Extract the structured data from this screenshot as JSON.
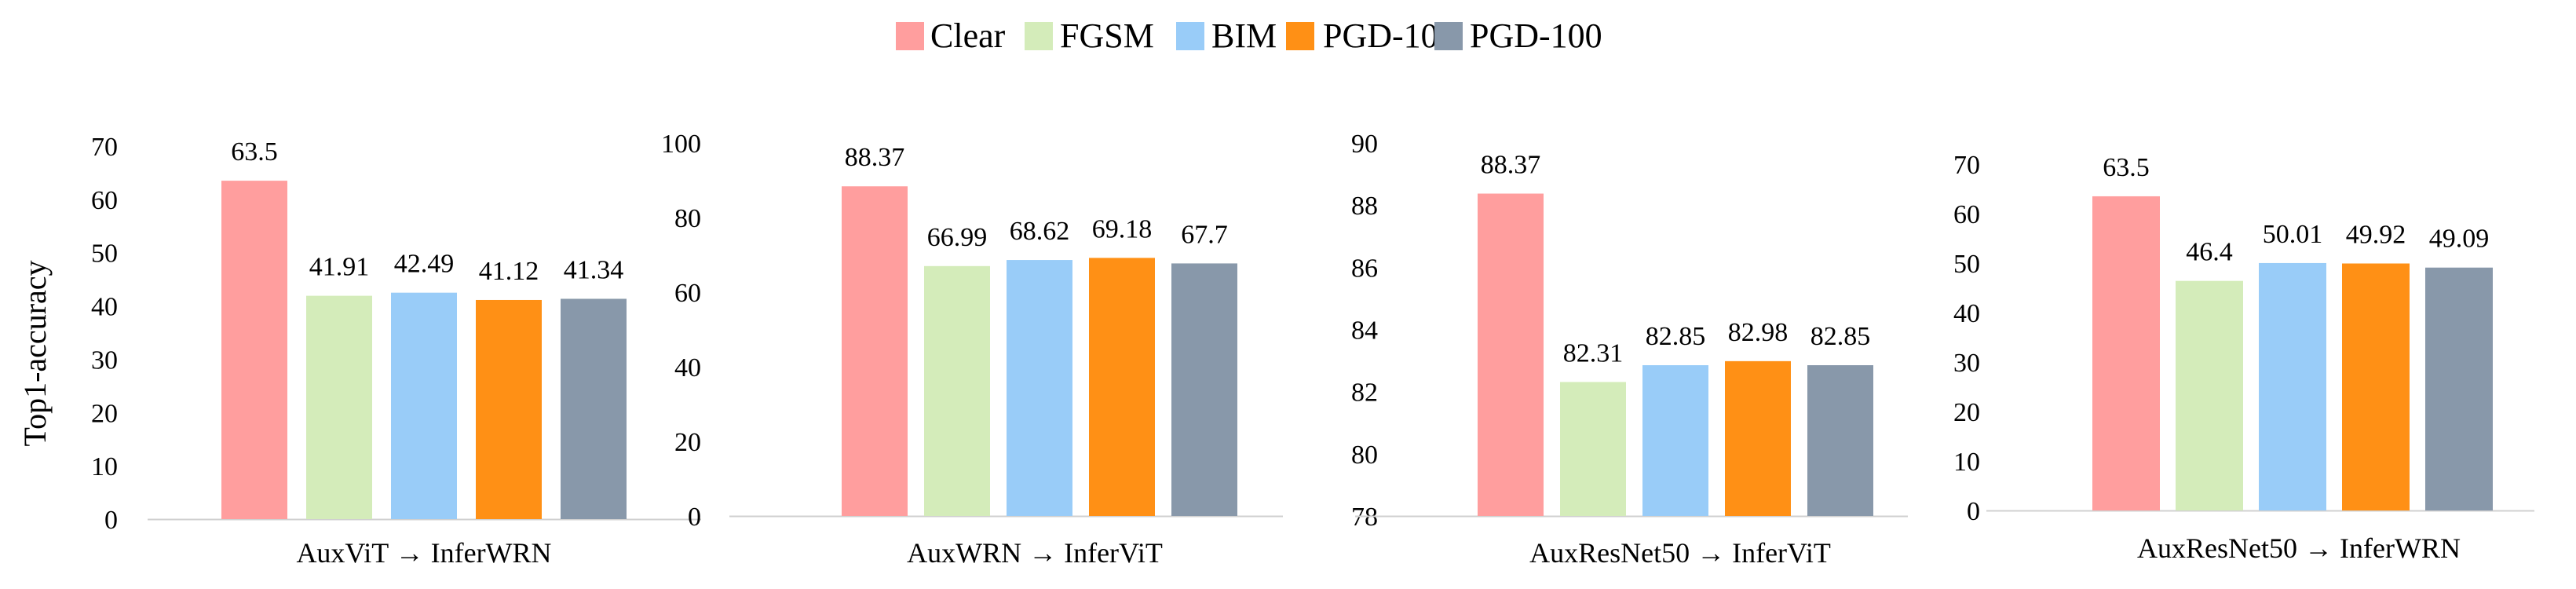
{
  "legend": {
    "position": "top-center",
    "items": [
      {
        "name": "Clear",
        "color": "#ff9e9e"
      },
      {
        "name": "FGSM",
        "color": "#d4ecba"
      },
      {
        "name": "BIM",
        "color": "#99ccf8"
      },
      {
        "name": "PGD-10",
        "color": "#ff9015"
      },
      {
        "name": "PGD-100",
        "color": "#8898aa"
      }
    ]
  },
  "shared_ylabel": "Top1-accuracy",
  "chart_data": [
    {
      "type": "bar",
      "title": "",
      "xlabel": "AuxViT → InferWRN",
      "ylabel": "Top1-accuracy",
      "categories": [
        "Clear",
        "FGSM",
        "BIM",
        "PGD-10",
        "PGD-100"
      ],
      "values": [
        63.5,
        41.91,
        42.49,
        41.12,
        41.34
      ],
      "labels": [
        "63.5",
        "41.91",
        "42.49",
        "41.12",
        "41.34"
      ],
      "ylim": [
        0,
        70
      ],
      "yticks": [
        0,
        10,
        20,
        30,
        40,
        50,
        60,
        70
      ],
      "grid": false
    },
    {
      "type": "bar",
      "title": "",
      "xlabel": "AuxWRN → InferViT",
      "ylabel": "",
      "categories": [
        "Clear",
        "FGSM",
        "BIM",
        "PGD-10",
        "PGD-100"
      ],
      "values": [
        88.37,
        66.99,
        68.62,
        69.18,
        67.7
      ],
      "labels": [
        "88.37",
        "66.99",
        "68.62",
        "69.18",
        "67.7"
      ],
      "ylim": [
        0,
        100
      ],
      "yticks": [
        0,
        20,
        40,
        60,
        80,
        100
      ],
      "grid": false
    },
    {
      "type": "bar",
      "title": "",
      "xlabel": "AuxResNet50 → InferViT",
      "ylabel": "",
      "categories": [
        "Clear",
        "FGSM",
        "BIM",
        "PGD-10",
        "PGD-100"
      ],
      "values": [
        88.37,
        82.31,
        82.85,
        82.98,
        82.85
      ],
      "labels": [
        "88.37",
        "82.31",
        "82.85",
        "82.98",
        "82.85"
      ],
      "ylim": [
        78,
        90
      ],
      "yticks": [
        78,
        80,
        82,
        84,
        86,
        88,
        90
      ],
      "grid": false
    },
    {
      "type": "bar",
      "title": "",
      "xlabel": "AuxResNet50 → InferWRN",
      "ylabel": "",
      "categories": [
        "Clear",
        "FGSM",
        "BIM",
        "PGD-10",
        "PGD-100"
      ],
      "values": [
        63.5,
        46.4,
        50.01,
        49.92,
        49.09
      ],
      "labels": [
        "63.5",
        "46.4",
        "50.01",
        "49.92",
        "49.09"
      ],
      "ylim": [
        0,
        70
      ],
      "yticks": [
        0,
        10,
        20,
        30,
        40,
        50,
        60,
        70
      ],
      "grid": false
    }
  ]
}
